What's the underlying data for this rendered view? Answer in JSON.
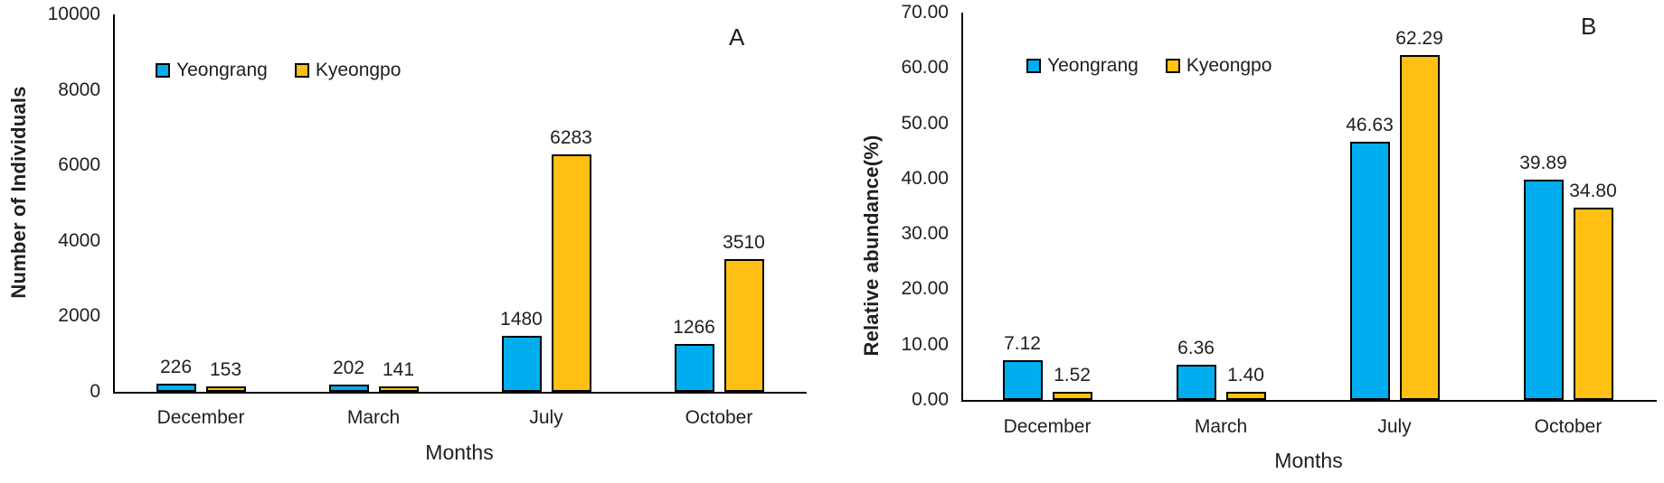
{
  "figure": {
    "background": "#ffffff",
    "series_colors": {
      "yeongrang": "#00AEEF",
      "kyeongpo": "#FFC013"
    },
    "axis_color": "#000000",
    "text_color": "#1f1f1f"
  },
  "chart_data": [
    {
      "type": "bar",
      "panel_label": "A",
      "title": "",
      "xlabel": "Months",
      "ylabel": "Number of Individuals",
      "categories": [
        "December",
        "March",
        "July",
        "October"
      ],
      "series": [
        {
          "name": "Yeongrang",
          "color": "#00AEEF",
          "values": [
            226,
            202,
            1480,
            1266
          ],
          "data_labels": [
            "226",
            "202",
            "1480",
            "1266"
          ]
        },
        {
          "name": "Kyeongpo",
          "color": "#FFC013",
          "values": [
            153,
            141,
            6283,
            3510
          ],
          "data_labels": [
            "153",
            "141",
            "6283",
            "3510"
          ]
        }
      ],
      "y_axis": {
        "min": 0,
        "max": 10000,
        "tick_values": [
          0,
          2000,
          4000,
          6000,
          8000,
          10000
        ],
        "tick_labels": [
          "0",
          "2000",
          "4000",
          "6000",
          "8000",
          "10000"
        ]
      },
      "legend": {
        "position": "top",
        "entries": [
          "Yeongrang",
          "Kyeongpo"
        ]
      },
      "grid": false,
      "bar_border_color": "#000000"
    },
    {
      "type": "bar",
      "panel_label": "B",
      "title": "",
      "xlabel": "Months",
      "ylabel": "Relative abundance(%)",
      "categories": [
        "December",
        "March",
        "July",
        "October"
      ],
      "series": [
        {
          "name": "Yeongrang",
          "color": "#00AEEF",
          "values": [
            7.12,
            6.36,
            46.63,
            39.89
          ],
          "data_labels": [
            "7.12",
            "6.36",
            "46.63",
            "39.89"
          ]
        },
        {
          "name": "Kyeongpo",
          "color": "#FFC013",
          "values": [
            1.52,
            1.4,
            62.29,
            34.8
          ],
          "data_labels": [
            "1.52",
            "1.40",
            "62.29",
            "34.80"
          ]
        }
      ],
      "y_axis": {
        "min": 0,
        "max": 70,
        "tick_values": [
          0,
          10,
          20,
          30,
          40,
          50,
          60,
          70
        ],
        "tick_labels": [
          "0.00",
          "10.00",
          "20.00",
          "30.00",
          "40.00",
          "50.00",
          "60.00",
          "70.00"
        ]
      },
      "legend": {
        "position": "top",
        "entries": [
          "Yeongrang",
          "Kyeongpo"
        ]
      },
      "grid": false,
      "bar_border_color": "#000000"
    }
  ]
}
